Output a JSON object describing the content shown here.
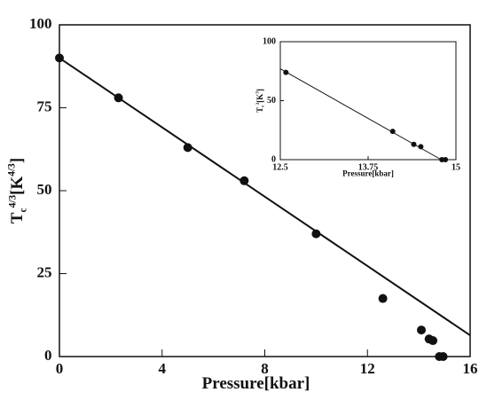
{
  "chart_data": [
    {
      "type": "scatter",
      "xlabel": "Pressure[kbar]",
      "ylabel": {
        "base": "T",
        "sub": "c",
        "sup": "4/3",
        "unit": "[K",
        "unit_sup": "4/3",
        "close": "]"
      },
      "xlim": [
        0,
        16
      ],
      "ylim": [
        0,
        100
      ],
      "xticks": [
        0,
        4,
        8,
        12,
        16
      ],
      "yticks": [
        0,
        25,
        50,
        75,
        100
      ],
      "series": [
        {
          "mode": "markers",
          "color": "#111111",
          "x": [
            0,
            2.3,
            5,
            7.2,
            10,
            12.6,
            14.1,
            14.4,
            14.55,
            14.8,
            14.95
          ],
          "values": [
            90,
            78,
            63,
            53,
            37,
            17.5,
            8,
            5.3,
            4.8,
            0,
            0
          ]
        },
        {
          "mode": "line",
          "color": "#111111",
          "x": [
            0,
            16
          ],
          "values": [
            90,
            6.4
          ]
        }
      ]
    },
    {
      "type": "scatter",
      "xlabel": "Pressure[kbar]",
      "ylabel": {
        "base": "T",
        "sub": "c",
        "sup": "3",
        "unit": "[K",
        "unit_sup": "3",
        "close": "]"
      },
      "xlim": [
        12.5,
        15
      ],
      "ylim": [
        0,
        100
      ],
      "xticks": [
        12.5,
        13.75,
        15
      ],
      "yticks": [
        0,
        50,
        100
      ],
      "series": [
        {
          "mode": "markers",
          "color": "#111111",
          "x": [
            12.58,
            14.1,
            14.4,
            14.5,
            14.8,
            14.85
          ],
          "values": [
            74,
            24,
            13,
            11,
            0,
            0
          ]
        },
        {
          "mode": "line",
          "color": "#111111",
          "x": [
            12.5,
            14.79
          ],
          "values": [
            77,
            0
          ]
        }
      ]
    }
  ]
}
